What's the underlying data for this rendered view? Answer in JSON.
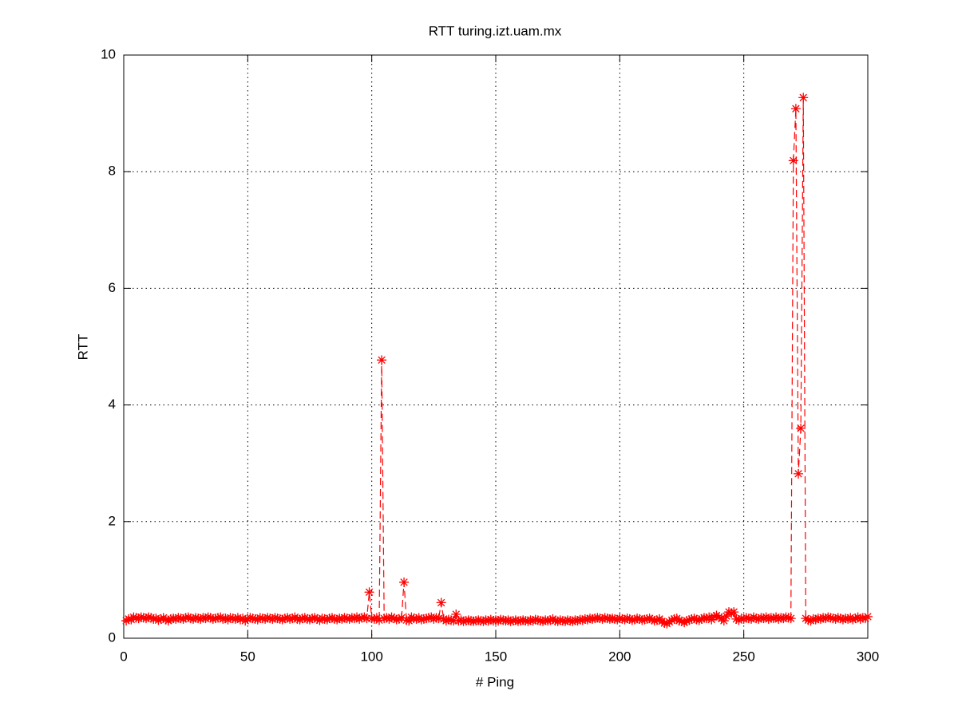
{
  "chart_data": {
    "type": "line",
    "title": "RTT turing.izt.uam.mx",
    "x_label": "# Ping",
    "y_label": "RTT",
    "xlim": [
      0,
      300
    ],
    "xticks": [
      0,
      50,
      100,
      150,
      200,
      250,
      300
    ],
    "ylim": [
      0,
      10
    ],
    "yticks": [
      0,
      2,
      4,
      6,
      8,
      10
    ],
    "grid": true,
    "series": [
      {
        "color": "#ff0000",
        "line_style": "dashed",
        "marker": "star",
        "x": [
          1,
          2,
          3,
          4,
          5,
          6,
          7,
          8,
          9,
          10,
          11,
          12,
          13,
          14,
          15,
          16,
          17,
          18,
          19,
          20,
          21,
          22,
          23,
          24,
          25,
          26,
          27,
          28,
          29,
          30,
          31,
          32,
          33,
          34,
          35,
          36,
          37,
          38,
          39,
          40,
          41,
          42,
          43,
          44,
          45,
          46,
          47,
          48,
          49,
          50,
          51,
          52,
          53,
          54,
          55,
          56,
          57,
          58,
          59,
          60,
          61,
          62,
          63,
          64,
          65,
          66,
          67,
          68,
          69,
          70,
          71,
          72,
          73,
          74,
          75,
          76,
          77,
          78,
          79,
          80,
          81,
          82,
          83,
          84,
          85,
          86,
          87,
          88,
          89,
          90,
          91,
          92,
          93,
          94,
          95,
          96,
          97,
          98,
          99,
          100,
          101,
          102,
          103,
          104,
          105,
          106,
          107,
          108,
          109,
          110,
          111,
          112,
          113,
          114,
          115,
          116,
          117,
          118,
          119,
          120,
          121,
          122,
          123,
          124,
          125,
          126,
          127,
          128,
          129,
          130,
          131,
          132,
          133,
          134,
          135,
          136,
          137,
          138,
          139,
          140,
          141,
          142,
          143,
          144,
          145,
          146,
          147,
          148,
          149,
          150,
          151,
          152,
          153,
          154,
          155,
          156,
          157,
          158,
          159,
          160,
          161,
          162,
          163,
          164,
          165,
          166,
          167,
          168,
          169,
          170,
          171,
          172,
          173,
          174,
          175,
          176,
          177,
          178,
          179,
          180,
          181,
          182,
          183,
          184,
          185,
          186,
          187,
          188,
          189,
          190,
          191,
          192,
          193,
          194,
          195,
          196,
          197,
          198,
          199,
          200,
          201,
          202,
          203,
          204,
          205,
          206,
          207,
          208,
          209,
          210,
          211,
          212,
          213,
          214,
          215,
          216,
          217,
          218,
          219,
          220,
          221,
          222,
          223,
          224,
          225,
          226,
          227,
          228,
          229,
          230,
          231,
          232,
          233,
          234,
          235,
          236,
          237,
          238,
          239,
          240,
          241,
          242,
          243,
          244,
          245,
          246,
          247,
          248,
          249,
          250,
          251,
          252,
          253,
          254,
          255,
          256,
          257,
          258,
          259,
          260,
          261,
          262,
          263,
          264,
          265,
          266,
          267,
          268,
          269,
          270,
          271,
          272,
          273,
          274,
          275,
          276,
          277,
          278,
          279,
          280,
          281,
          282,
          283,
          284,
          285,
          286,
          287,
          288,
          289,
          290,
          291,
          292,
          293,
          294,
          295,
          296,
          297,
          298,
          299,
          300
        ],
        "values": [
          0.3,
          0.33,
          0.32,
          0.36,
          0.35,
          0.34,
          0.36,
          0.35,
          0.34,
          0.36,
          0.35,
          0.33,
          0.34,
          0.31,
          0.33,
          0.35,
          0.32,
          0.3,
          0.33,
          0.34,
          0.33,
          0.35,
          0.34,
          0.33,
          0.35,
          0.36,
          0.34,
          0.33,
          0.35,
          0.34,
          0.33,
          0.35,
          0.34,
          0.36,
          0.35,
          0.33,
          0.34,
          0.35,
          0.36,
          0.33,
          0.34,
          0.32,
          0.35,
          0.34,
          0.33,
          0.35,
          0.32,
          0.34,
          0.3,
          0.33,
          0.35,
          0.34,
          0.33,
          0.32,
          0.35,
          0.34,
          0.33,
          0.35,
          0.34,
          0.33,
          0.35,
          0.34,
          0.33,
          0.32,
          0.34,
          0.35,
          0.33,
          0.34,
          0.36,
          0.33,
          0.32,
          0.34,
          0.35,
          0.33,
          0.32,
          0.34,
          0.35,
          0.33,
          0.31,
          0.34,
          0.33,
          0.32,
          0.34,
          0.35,
          0.33,
          0.32,
          0.34,
          0.33,
          0.35,
          0.34,
          0.33,
          0.35,
          0.34,
          0.36,
          0.33,
          0.35,
          0.36,
          0.34,
          0.79,
          0.34,
          0.33,
          0.35,
          0.31,
          4.77,
          0.34,
          0.35,
          0.33,
          0.36,
          0.34,
          0.32,
          0.33,
          0.35,
          0.96,
          0.31,
          0.3,
          0.36,
          0.34,
          0.33,
          0.35,
          0.32,
          0.33,
          0.34,
          0.35,
          0.36,
          0.33,
          0.35,
          0.34,
          0.61,
          0.33,
          0.3,
          0.32,
          0.31,
          0.3,
          0.41,
          0.3,
          0.31,
          0.29,
          0.3,
          0.31,
          0.3,
          0.29,
          0.3,
          0.31,
          0.3,
          0.29,
          0.31,
          0.3,
          0.32,
          0.3,
          0.31,
          0.3,
          0.32,
          0.31,
          0.3,
          0.31,
          0.29,
          0.3,
          0.31,
          0.29,
          0.3,
          0.31,
          0.3,
          0.29,
          0.31,
          0.3,
          0.32,
          0.31,
          0.3,
          0.29,
          0.31,
          0.3,
          0.31,
          0.33,
          0.3,
          0.29,
          0.31,
          0.3,
          0.29,
          0.31,
          0.3,
          0.29,
          0.31,
          0.3,
          0.32,
          0.31,
          0.33,
          0.32,
          0.34,
          0.33,
          0.34,
          0.35,
          0.34,
          0.33,
          0.35,
          0.34,
          0.33,
          0.34,
          0.33,
          0.32,
          0.34,
          0.33,
          0.32,
          0.34,
          0.33,
          0.31,
          0.32,
          0.34,
          0.33,
          0.31,
          0.32,
          0.33,
          0.34,
          0.32,
          0.3,
          0.31,
          0.33,
          0.29,
          0.26,
          0.25,
          0.28,
          0.31,
          0.33,
          0.34,
          0.3,
          0.29,
          0.27,
          0.3,
          0.31,
          0.33,
          0.34,
          0.32,
          0.31,
          0.33,
          0.35,
          0.34,
          0.36,
          0.32,
          0.37,
          0.39,
          0.36,
          0.34,
          0.3,
          0.38,
          0.45,
          0.43,
          0.45,
          0.33,
          0.31,
          0.34,
          0.33,
          0.35,
          0.34,
          0.33,
          0.36,
          0.34,
          0.33,
          0.35,
          0.34,
          0.36,
          0.33,
          0.35,
          0.34,
          0.36,
          0.33,
          0.35,
          0.34,
          0.36,
          0.35,
          0.34,
          8.19,
          9.08,
          2.82,
          3.6,
          9.27,
          0.34,
          0.31,
          0.3,
          0.33,
          0.32,
          0.34,
          0.33,
          0.35,
          0.34,
          0.36,
          0.35,
          0.34,
          0.33,
          0.35,
          0.34,
          0.32,
          0.34,
          0.33,
          0.35,
          0.32,
          0.34,
          0.36,
          0.33,
          0.35,
          0.34,
          0.37
        ]
      }
    ]
  }
}
